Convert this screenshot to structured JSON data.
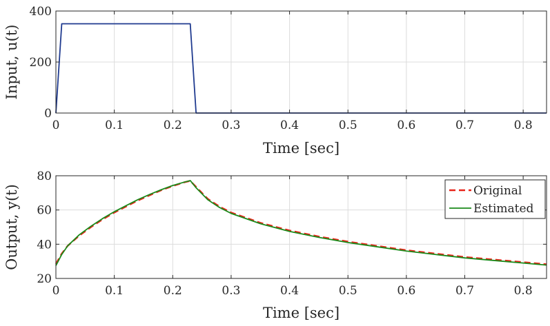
{
  "chart_data": [
    {
      "type": "line",
      "xlabel": "Time [sec]",
      "ylabel": "Input, u(t)",
      "xlim": [
        0,
        0.84
      ],
      "ylim": [
        0,
        400
      ],
      "xticks": [
        0,
        0.1,
        0.2,
        0.3,
        0.4,
        0.5,
        0.6,
        0.7,
        0.8
      ],
      "xtick_labels": [
        "0",
        "0.1",
        "0.2",
        "0.3",
        "0.4",
        "0.5",
        "0.6",
        "0.7",
        "0.8"
      ],
      "yticks": [
        0,
        200,
        400
      ],
      "ytick_labels": [
        "0",
        "200",
        "400"
      ],
      "grid": true,
      "series": [
        {
          "color": "#1f3a8f",
          "dash": "solid",
          "x": [
            0,
            0.01,
            0.23,
            0.24,
            0.84
          ],
          "y": [
            0,
            350,
            350,
            0,
            0
          ]
        }
      ]
    },
    {
      "type": "line",
      "xlabel": "Time [sec]",
      "ylabel": "Output, y(t)",
      "xlim": [
        0,
        0.84
      ],
      "ylim": [
        20,
        80
      ],
      "xticks": [
        0,
        0.1,
        0.2,
        0.3,
        0.4,
        0.5,
        0.6,
        0.7,
        0.8
      ],
      "xtick_labels": [
        "0",
        "0.1",
        "0.2",
        "0.3",
        "0.4",
        "0.5",
        "0.6",
        "0.7",
        "0.8"
      ],
      "yticks": [
        20,
        40,
        60,
        80
      ],
      "ytick_labels": [
        "20",
        "40",
        "60",
        "80"
      ],
      "grid": true,
      "legend": "top-right",
      "series": [
        {
          "name": "Original",
          "color": "#e8241a",
          "dash": "dashed",
          "x": [
            0,
            0.01,
            0.02,
            0.04,
            0.06,
            0.08,
            0.1,
            0.12,
            0.14,
            0.16,
            0.18,
            0.2,
            0.22,
            0.23,
            0.24,
            0.26,
            0.28,
            0.3,
            0.35,
            0.4,
            0.45,
            0.5,
            0.55,
            0.6,
            0.65,
            0.7,
            0.75,
            0.8,
            0.84
          ],
          "y": [
            28.5,
            34.5,
            39,
            45,
            50,
            54.5,
            58.5,
            62,
            65.5,
            68.5,
            71.5,
            74,
            76.2,
            77,
            73.5,
            66.5,
            62,
            58.5,
            52.5,
            48,
            44.5,
            41.5,
            39,
            36.5,
            34.5,
            32.5,
            31,
            29.5,
            28.3
          ]
        },
        {
          "name": "Estimated",
          "color": "#1a8a1a",
          "dash": "solid",
          "x": [
            0,
            0.01,
            0.02,
            0.04,
            0.06,
            0.08,
            0.1,
            0.12,
            0.14,
            0.16,
            0.18,
            0.2,
            0.22,
            0.23,
            0.24,
            0.26,
            0.28,
            0.3,
            0.35,
            0.4,
            0.45,
            0.5,
            0.55,
            0.6,
            0.65,
            0.7,
            0.75,
            0.8,
            0.84
          ],
          "y": [
            27.5,
            34,
            39,
            45.5,
            50.5,
            55,
            59,
            62.5,
            66,
            69,
            71.8,
            74.3,
            76.3,
            77.2,
            73,
            66,
            61.5,
            58,
            52,
            47.5,
            44,
            41,
            38.5,
            36,
            34,
            32,
            30.5,
            29,
            27.8
          ]
        }
      ]
    }
  ]
}
